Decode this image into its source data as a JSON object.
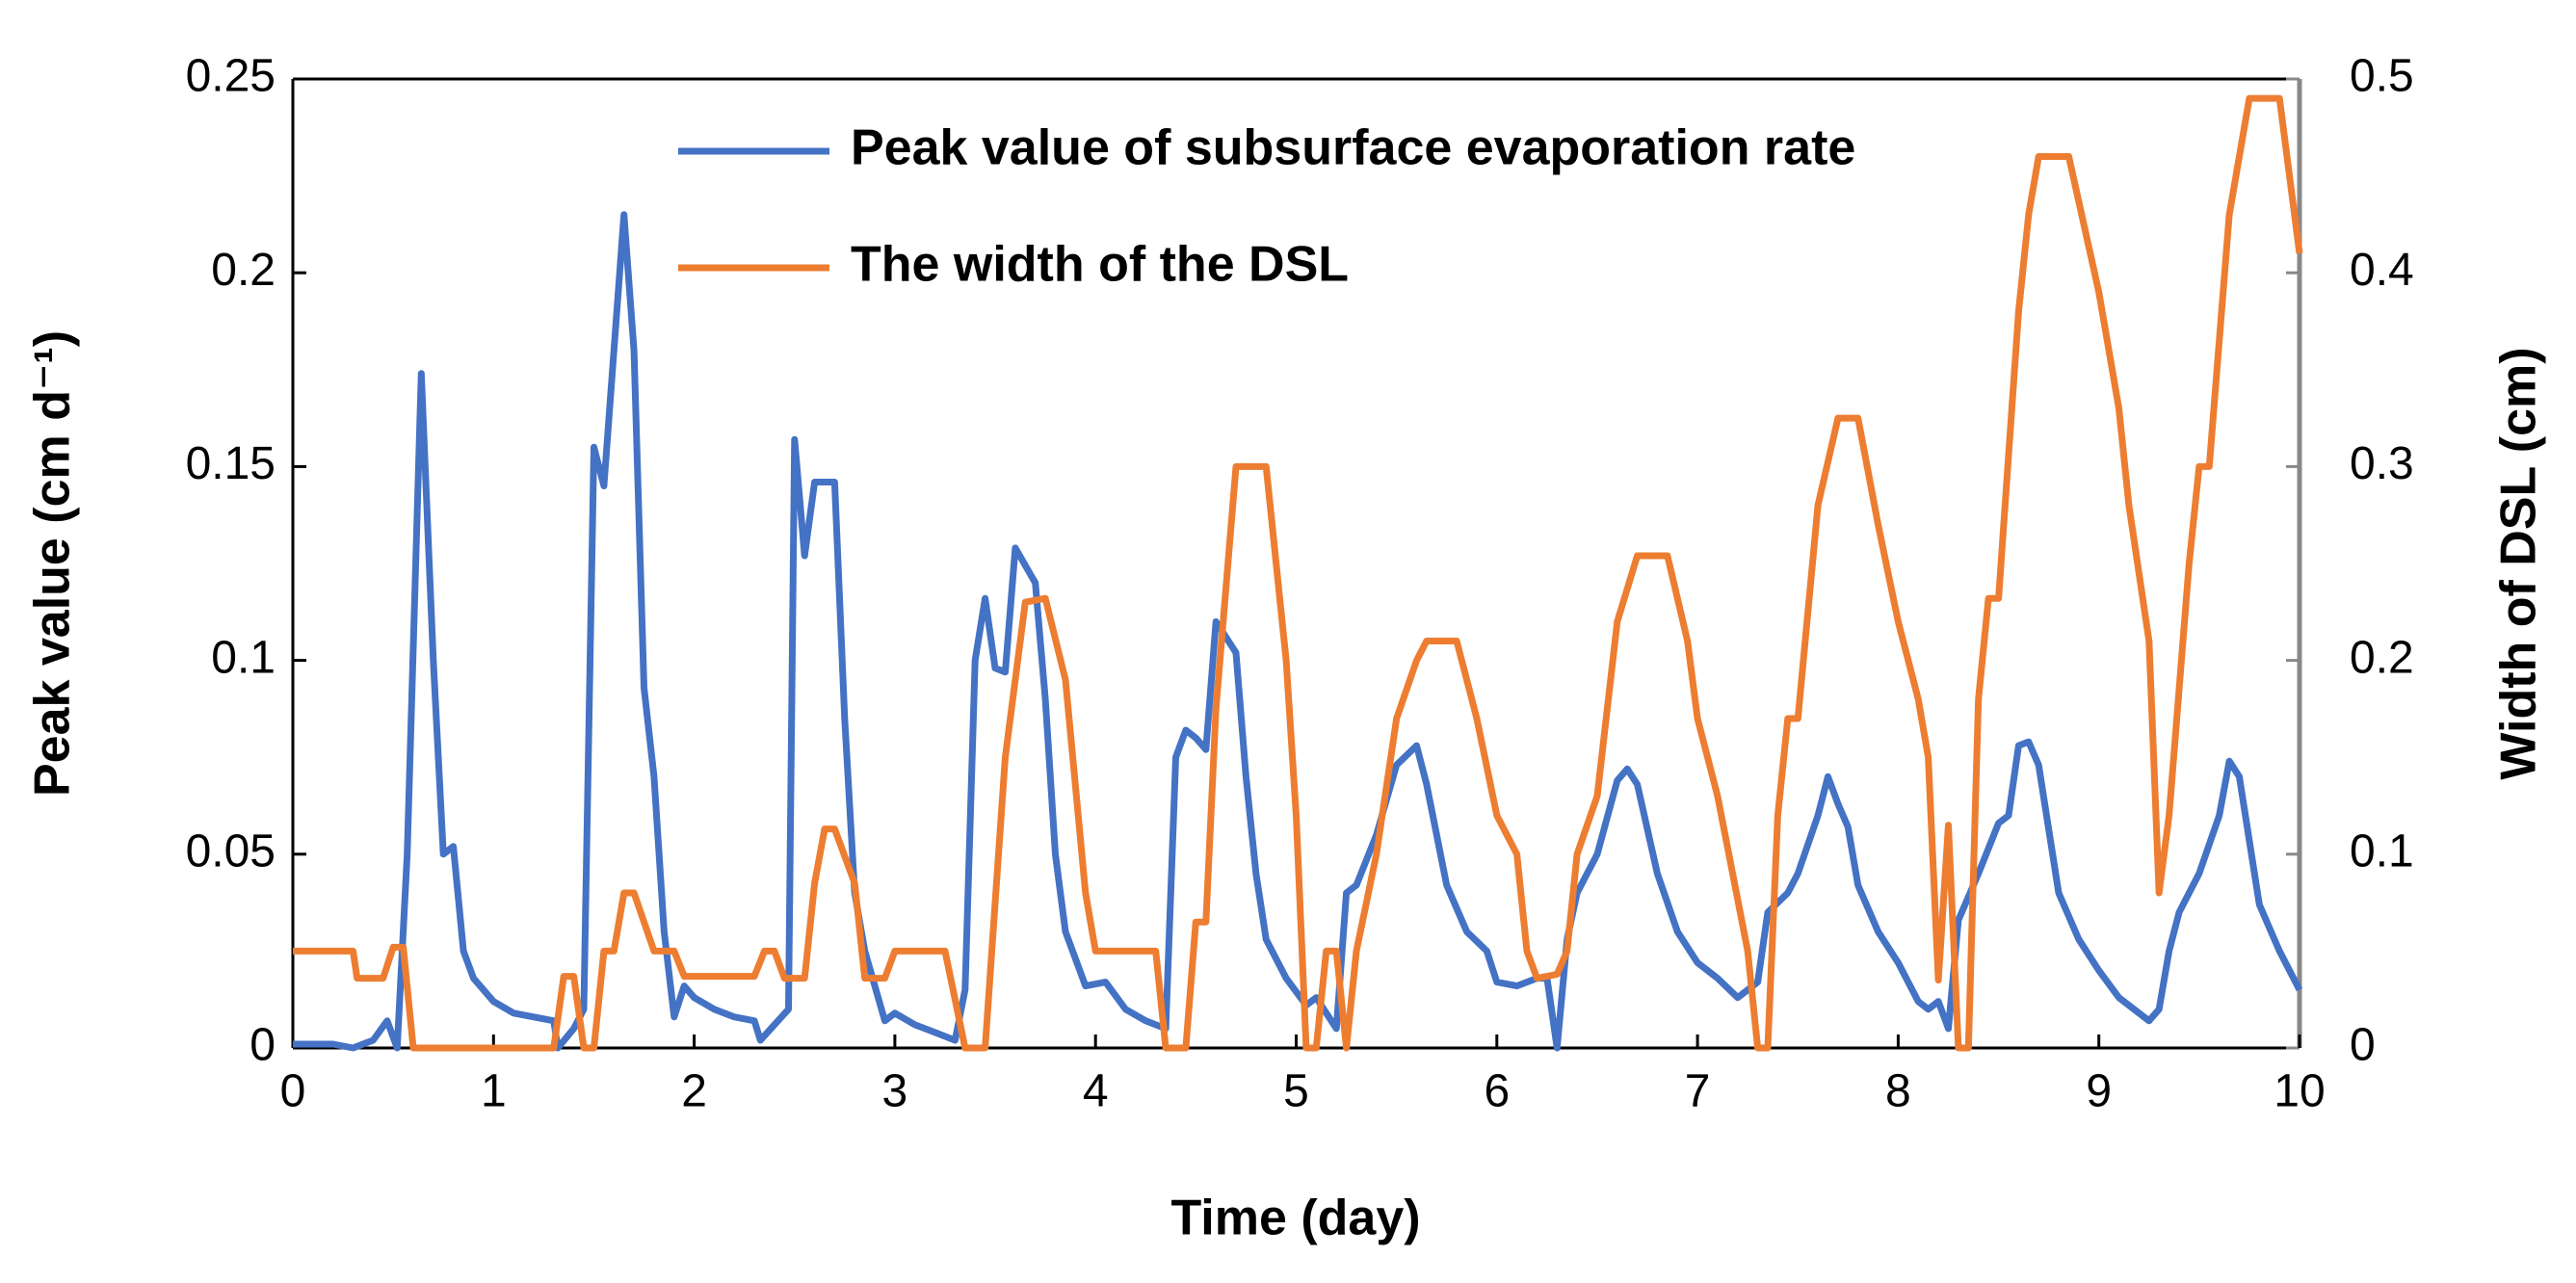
{
  "chart_data": {
    "type": "line",
    "xlabel": "Time (day)",
    "ylabel": "Peak  value (cm d⁻¹)",
    "y2label": "Width of DSL (cm)",
    "xlim": [
      0,
      10
    ],
    "xticks": [
      0,
      1,
      2,
      3,
      4,
      5,
      6,
      7,
      8,
      9,
      10
    ],
    "ylim": [
      0,
      0.25
    ],
    "yticks": [
      0,
      0.05,
      0.1,
      0.15,
      0.2,
      0.25
    ],
    "y2lim": [
      0,
      0.5
    ],
    "y2ticks": [
      0,
      0.1,
      0.2,
      0.3,
      0.4,
      0.5
    ],
    "legend": "top",
    "series": [
      {
        "name": "Peak value of subsurface evaporation rate",
        "color": "#4472c4",
        "x": [
          0,
          0.2,
          0.3,
          0.4,
          0.47,
          0.52,
          0.57,
          0.64,
          0.7,
          0.75,
          0.8,
          0.85,
          0.9,
          1.0,
          1.1,
          1.2,
          1.3,
          1.32,
          1.4,
          1.45,
          1.5,
          1.55,
          1.65,
          1.7,
          1.75,
          1.8,
          1.85,
          1.9,
          1.95,
          2.0,
          2.1,
          2.2,
          2.3,
          2.33,
          2.4,
          2.47,
          2.5,
          2.55,
          2.6,
          2.7,
          2.75,
          2.8,
          2.85,
          2.9,
          2.95,
          3.0,
          3.1,
          3.2,
          3.3,
          3.35,
          3.4,
          3.45,
          3.5,
          3.55,
          3.6,
          3.7,
          3.75,
          3.8,
          3.85,
          3.95,
          4.05,
          4.15,
          4.25,
          4.3,
          4.35,
          4.4,
          4.45,
          4.5,
          4.55,
          4.6,
          4.7,
          4.75,
          4.8,
          4.85,
          4.95,
          5.05,
          5.1,
          5.2,
          5.25,
          5.3,
          5.4,
          5.5,
          5.6,
          5.65,
          5.75,
          5.85,
          5.95,
          6.0,
          6.1,
          6.2,
          6.25,
          6.3,
          6.35,
          6.4,
          6.5,
          6.6,
          6.65,
          6.7,
          6.8,
          6.9,
          7.0,
          7.1,
          7.2,
          7.3,
          7.35,
          7.45,
          7.5,
          7.6,
          7.65,
          7.7,
          7.75,
          7.8,
          7.9,
          8.0,
          8.1,
          8.15,
          8.2,
          8.25,
          8.3,
          8.4,
          8.5,
          8.55,
          8.6,
          8.65,
          8.7,
          8.8,
          8.9,
          9.0,
          9.1,
          9.2,
          9.25,
          9.3,
          9.35,
          9.4,
          9.5,
          9.6,
          9.65,
          9.7,
          9.8,
          9.9,
          10
        ],
        "values": [
          0.001,
          0.001,
          0.0,
          0.002,
          0.007,
          0.0,
          0.05,
          0.174,
          0.1,
          0.05,
          0.052,
          0.025,
          0.018,
          0.012,
          0.009,
          0.008,
          0.007,
          0.0,
          0.005,
          0.01,
          0.155,
          0.145,
          0.215,
          0.18,
          0.093,
          0.07,
          0.03,
          0.008,
          0.016,
          0.013,
          0.01,
          0.008,
          0.007,
          0.002,
          0.006,
          0.01,
          0.157,
          0.127,
          0.146,
          0.146,
          0.085,
          0.04,
          0.025,
          0.016,
          0.007,
          0.009,
          0.006,
          0.004,
          0.002,
          0.015,
          0.1,
          0.116,
          0.098,
          0.097,
          0.129,
          0.12,
          0.09,
          0.05,
          0.03,
          0.016,
          0.017,
          0.01,
          0.007,
          0.006,
          0.005,
          0.075,
          0.082,
          0.08,
          0.077,
          0.11,
          0.102,
          0.07,
          0.045,
          0.028,
          0.018,
          0.011,
          0.013,
          0.005,
          0.04,
          0.042,
          0.055,
          0.073,
          0.078,
          0.068,
          0.042,
          0.03,
          0.025,
          0.017,
          0.016,
          0.018,
          0.018,
          0.0,
          0.028,
          0.04,
          0.05,
          0.069,
          0.072,
          0.068,
          0.045,
          0.03,
          0.022,
          0.018,
          0.013,
          0.017,
          0.035,
          0.04,
          0.045,
          0.06,
          0.07,
          0.063,
          0.057,
          0.042,
          0.03,
          0.022,
          0.012,
          0.01,
          0.012,
          0.005,
          0.033,
          0.045,
          0.058,
          0.06,
          0.078,
          0.079,
          0.073,
          0.04,
          0.028,
          0.02,
          0.013,
          0.009,
          0.007,
          0.01,
          0.025,
          0.035,
          0.045,
          0.06,
          0.074,
          0.07,
          0.037,
          0.025,
          0.015
        ]
      },
      {
        "name": "The width of the DSL",
        "color": "#ed7d31",
        "axis": "y2",
        "x": [
          0,
          0.3,
          0.32,
          0.45,
          0.5,
          0.55,
          0.6,
          1.3,
          1.35,
          1.4,
          1.45,
          1.5,
          1.55,
          1.6,
          1.65,
          1.7,
          1.8,
          1.9,
          1.95,
          2.3,
          2.35,
          2.4,
          2.45,
          2.55,
          2.6,
          2.65,
          2.7,
          2.8,
          2.85,
          2.95,
          3.0,
          3.25,
          3.35,
          3.45,
          3.5,
          3.55,
          3.6,
          3.65,
          3.75,
          3.85,
          3.95,
          4.0,
          4.3,
          4.35,
          4.45,
          4.5,
          4.55,
          4.6,
          4.7,
          4.85,
          4.95,
          5.0,
          5.05,
          5.1,
          5.15,
          5.2,
          5.25,
          5.3,
          5.4,
          5.5,
          5.6,
          5.65,
          5.8,
          5.9,
          6.0,
          6.1,
          6.15,
          6.2,
          6.3,
          6.35,
          6.4,
          6.5,
          6.6,
          6.7,
          6.85,
          6.95,
          7.0,
          7.1,
          7.25,
          7.3,
          7.35,
          7.4,
          7.45,
          7.5,
          7.6,
          7.7,
          7.8,
          7.9,
          8.0,
          8.1,
          8.15,
          8.2,
          8.25,
          8.3,
          8.35,
          8.4,
          8.45,
          8.5,
          8.6,
          8.65,
          8.7,
          8.85,
          9.0,
          9.1,
          9.15,
          9.25,
          9.3,
          9.35,
          9.45,
          9.5,
          9.55,
          9.65,
          9.75,
          9.9,
          10
        ],
        "values": [
          0.05,
          0.05,
          0.036,
          0.036,
          0.052,
          0.052,
          0.0,
          0.0,
          0.037,
          0.037,
          0.0,
          0.0,
          0.05,
          0.05,
          0.08,
          0.08,
          0.05,
          0.05,
          0.037,
          0.037,
          0.05,
          0.05,
          0.036,
          0.036,
          0.085,
          0.113,
          0.113,
          0.085,
          0.036,
          0.036,
          0.05,
          0.05,
          0.0,
          0.0,
          0.075,
          0.15,
          0.19,
          0.23,
          0.232,
          0.19,
          0.08,
          0.05,
          0.05,
          0.0,
          0.0,
          0.065,
          0.065,
          0.175,
          0.3,
          0.3,
          0.2,
          0.12,
          0.0,
          0.0,
          0.05,
          0.05,
          0.0,
          0.05,
          0.1,
          0.17,
          0.2,
          0.21,
          0.21,
          0.17,
          0.12,
          0.1,
          0.05,
          0.036,
          0.038,
          0.05,
          0.1,
          0.13,
          0.22,
          0.254,
          0.254,
          0.21,
          0.17,
          0.13,
          0.05,
          0.0,
          0.0,
          0.12,
          0.17,
          0.17,
          0.28,
          0.325,
          0.325,
          0.27,
          0.22,
          0.18,
          0.15,
          0.035,
          0.115,
          0.0,
          0.0,
          0.18,
          0.232,
          0.232,
          0.38,
          0.43,
          0.46,
          0.46,
          0.39,
          0.33,
          0.28,
          0.21,
          0.08,
          0.12,
          0.25,
          0.3,
          0.3,
          0.43,
          0.49,
          0.49,
          0.41
        ]
      }
    ]
  }
}
